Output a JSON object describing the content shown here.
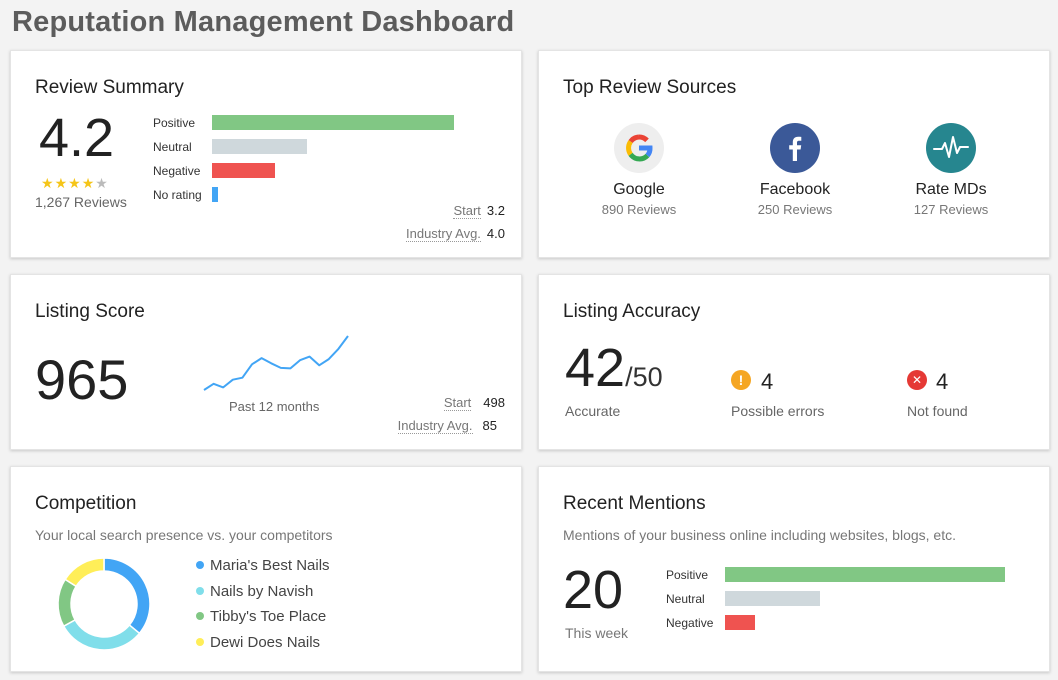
{
  "page_title": "Reputation Management Dashboard",
  "review_summary": {
    "title": "Review Summary",
    "rating": "4.2",
    "stars": 4,
    "stars_total": 5,
    "reviews_label": "1,267 Reviews",
    "bars": [
      {
        "label": "Positive",
        "value": 0.84,
        "color": "#81c784"
      },
      {
        "label": "Neutral",
        "value": 0.33,
        "color": "#cfd8dc"
      },
      {
        "label": "Negative",
        "value": 0.22,
        "color": "#ef5350"
      },
      {
        "label": "No rating",
        "value": 0.02,
        "color": "#42a5f5"
      }
    ],
    "start_label": "Start",
    "start_value": "3.2",
    "industry_label": "Industry Avg.",
    "industry_value": "4.0"
  },
  "top_sources": {
    "title": "Top Review Sources",
    "sources": [
      {
        "name": "Google",
        "count": "890 Reviews",
        "icon": "google-icon",
        "color": "#eeeeee"
      },
      {
        "name": "Facebook",
        "count": "250 Reviews",
        "icon": "facebook-icon",
        "color": "#3b5998"
      },
      {
        "name": "Rate MDs",
        "count": "127 Reviews",
        "icon": "heartbeat-icon",
        "color": "#26868f"
      }
    ]
  },
  "listing_score": {
    "title": "Listing Score",
    "score": "965",
    "caption": "Past 12 months",
    "start_label": "Start",
    "start_value": "498",
    "industry_label": "Industry Avg.",
    "industry_value": "85",
    "chart_data": {
      "type": "line",
      "series": [
        {
          "values": [
            860,
            872,
            865,
            880,
            884,
            910,
            922,
            912,
            903,
            902,
            918,
            925,
            908,
            920,
            940,
            965
          ]
        }
      ]
    }
  },
  "listing_accuracy": {
    "title": "Listing Accuracy",
    "accurate": "42",
    "total": "/50",
    "accurate_label": "Accurate",
    "errors_value": "4",
    "errors_label": "Possible errors",
    "errors_glyph": "!",
    "notfound_value": "4",
    "notfound_label": "Not found",
    "notfound_glyph": "✕",
    "colors": {
      "warning": "#f5a623",
      "error": "#e53935"
    }
  },
  "competition": {
    "title": "Competition",
    "subtitle": "Your local search presence vs. your competitors",
    "chart_data": {
      "type": "pie",
      "categories": [
        "Maria's Best Nails",
        "Nails by Navish",
        "Tibby's Toe Place",
        "Dewi Does Nails"
      ],
      "values": [
        36,
        31,
        17,
        16
      ],
      "colors": [
        "#42a5f5",
        "#80deea",
        "#81c784",
        "#ffee58"
      ]
    }
  },
  "recent_mentions": {
    "title": "Recent Mentions",
    "subtitle": "Mentions of your business online including websites, blogs, etc.",
    "count": "20",
    "caption": "This week",
    "bars": [
      {
        "label": "Positive",
        "value": 0.94,
        "color": "#81c784"
      },
      {
        "label": "Neutral",
        "value": 0.32,
        "color": "#cfd8dc"
      },
      {
        "label": "Negative",
        "value": 0.1,
        "color": "#ef5350"
      }
    ]
  }
}
